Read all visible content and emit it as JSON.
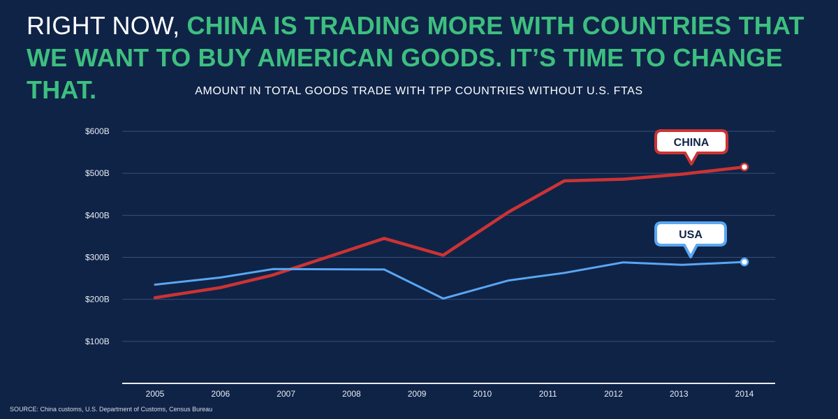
{
  "headline": {
    "plain": "RIGHT NOW, ",
    "accent": "CHINA IS TRADING MORE WITH COUNTRIES THAT WE WANT TO BUY AMERICAN GOODS. IT’S TIME TO CHANGE THAT."
  },
  "source": "SOURCE: China customs, U.S. Department of Customs, Census Bureau",
  "colors": {
    "background": "#0f2347",
    "accent_green": "#3dbf7f",
    "china_red": "#cc3333",
    "usa_blue": "#5aa6f2",
    "grid": "#3a4f78"
  },
  "chart_data": {
    "type": "line",
    "title": "AMOUNT IN TOTAL GOODS TRADE WITH TPP COUNTRIES WITHOUT U.S. FTAS",
    "x": [
      "2005",
      "2006",
      "2007",
      "2008",
      "2009",
      "2010",
      "2011",
      "2012",
      "2013",
      "2014"
    ],
    "ylim": [
      0,
      600
    ],
    "yticks": [
      100,
      200,
      300,
      400,
      500,
      600
    ],
    "ytick_labels": [
      "$100B",
      "$200B",
      "$300B",
      "$400B",
      "$500B",
      "$600B"
    ],
    "grid": true,
    "series": [
      {
        "name": "CHINA",
        "color": "#cc3333",
        "points": [
          {
            "x": 2005.0,
            "y": 204
          },
          {
            "x": 2006.0,
            "y": 228
          },
          {
            "x": 2006.8,
            "y": 258
          },
          {
            "x": 2008.5,
            "y": 345
          },
          {
            "x": 2009.4,
            "y": 305
          },
          {
            "x": 2010.4,
            "y": 408
          },
          {
            "x": 2011.25,
            "y": 482
          },
          {
            "x": 2012.15,
            "y": 486
          },
          {
            "x": 2013.05,
            "y": 498
          },
          {
            "x": 2014.0,
            "y": 515
          }
        ]
      },
      {
        "name": "USA",
        "color": "#5aa6f2",
        "points": [
          {
            "x": 2005.0,
            "y": 235
          },
          {
            "x": 2006.0,
            "y": 252
          },
          {
            "x": 2006.8,
            "y": 272
          },
          {
            "x": 2008.5,
            "y": 271
          },
          {
            "x": 2009.4,
            "y": 202
          },
          {
            "x": 2010.4,
            "y": 245
          },
          {
            "x": 2011.25,
            "y": 263
          },
          {
            "x": 2012.15,
            "y": 288
          },
          {
            "x": 2013.05,
            "y": 282
          },
          {
            "x": 2014.0,
            "y": 289
          }
        ]
      }
    ]
  }
}
